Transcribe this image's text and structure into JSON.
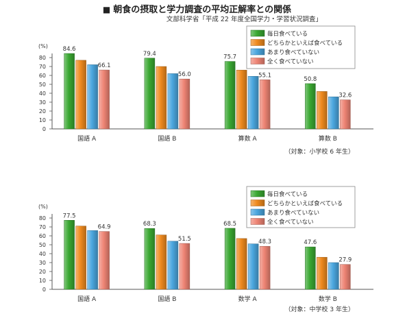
{
  "title": "朝食の摂取と学力調査の平均正解率との関係",
  "title_marker": "■",
  "source": "文部科学省「平成 22 年度全国学力・学習状況調査」",
  "colors": {
    "series1": "#3aa832",
    "series2": "#ef8a1e",
    "series3": "#4aa6de",
    "series4": "#ee8474"
  },
  "chart_data": [
    {
      "type": "bar",
      "ylabel": "(%)",
      "ylim": [
        0,
        80
      ],
      "yticks": [
        0,
        10,
        20,
        30,
        40,
        50,
        60,
        70,
        80
      ],
      "legend_position": "top-right",
      "note": "（対象：小学校 6 年生）",
      "categories": [
        "国語 A",
        "国語 B",
        "算数 A",
        "算数 B"
      ],
      "series": [
        {
          "name": "毎日食べている",
          "values": [
            84.6,
            79.4,
            75.7,
            50.8
          ]
        },
        {
          "name": "どちらかといえば食べている",
          "values": [
            77,
            70,
            66,
            42
          ]
        },
        {
          "name": "あまり食べていない",
          "values": [
            72,
            62,
            59,
            36
          ]
        },
        {
          "name": "全く食べていない",
          "values": [
            66.1,
            56.0,
            55.1,
            32.6
          ]
        }
      ],
      "data_labels": [
        {
          "category": 0,
          "series": 0,
          "text": "84.6"
        },
        {
          "category": 0,
          "series": 3,
          "text": "66.1"
        },
        {
          "category": 1,
          "series": 0,
          "text": "79.4"
        },
        {
          "category": 1,
          "series": 3,
          "text": "56.0"
        },
        {
          "category": 2,
          "series": 0,
          "text": "75.7"
        },
        {
          "category": 2,
          "series": 3,
          "text": "55.1"
        },
        {
          "category": 3,
          "series": 0,
          "text": "50.8"
        },
        {
          "category": 3,
          "series": 3,
          "text": "32.6"
        }
      ]
    },
    {
      "type": "bar",
      "ylabel": "(%)",
      "ylim": [
        0,
        80
      ],
      "yticks": [
        0,
        10,
        20,
        30,
        40,
        50,
        60,
        70,
        80
      ],
      "legend_position": "top-right",
      "note": "（対象：中学校 3 年生）",
      "categories": [
        "国語 A",
        "国語 B",
        "数学 A",
        "数学 B"
      ],
      "series": [
        {
          "name": "毎日食べている",
          "values": [
            77.5,
            68.3,
            68.5,
            47.6
          ]
        },
        {
          "name": "どちらかといえば食べている",
          "values": [
            71,
            61,
            57,
            36
          ]
        },
        {
          "name": "あまり食べていない",
          "values": [
            66,
            54,
            51,
            30
          ]
        },
        {
          "name": "全く食べていない",
          "values": [
            64.9,
            51.5,
            48.3,
            27.9
          ]
        }
      ],
      "data_labels": [
        {
          "category": 0,
          "series": 0,
          "text": "77.5"
        },
        {
          "category": 0,
          "series": 3,
          "text": "64.9"
        },
        {
          "category": 1,
          "series": 0,
          "text": "68.3"
        },
        {
          "category": 1,
          "series": 3,
          "text": "51.5"
        },
        {
          "category": 2,
          "series": 0,
          "text": "68.5"
        },
        {
          "category": 2,
          "series": 3,
          "text": "48.3"
        },
        {
          "category": 3,
          "series": 0,
          "text": "47.6"
        },
        {
          "category": 3,
          "series": 3,
          "text": "27.9"
        }
      ]
    }
  ]
}
